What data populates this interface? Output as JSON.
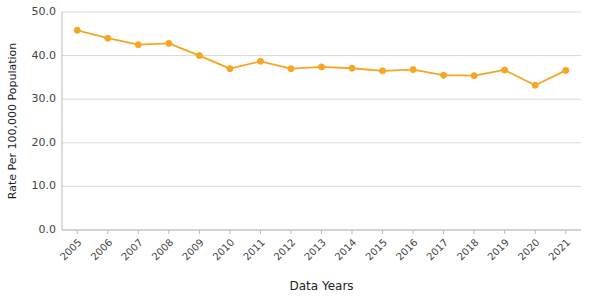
{
  "chart_data": {
    "type": "line",
    "x": [
      2005,
      2006,
      2007,
      2008,
      2009,
      2010,
      2011,
      2012,
      2013,
      2014,
      2015,
      2016,
      2017,
      2018,
      2019,
      2020,
      2021
    ],
    "values": [
      45.8,
      44.0,
      42.5,
      42.8,
      40.0,
      37.0,
      38.7,
      37.0,
      37.4,
      37.1,
      36.5,
      36.8,
      35.5,
      35.4,
      36.7,
      33.2,
      36.6
    ],
    "color": "#F5A623",
    "marker": "circle",
    "xlabel": "Data Years",
    "ylabel": "Rate Per 100,000 Population",
    "xlim": [
      2004.5,
      2021.5
    ],
    "xticks": [
      2005,
      2006,
      2007,
      2008,
      2009,
      2010,
      2011,
      2012,
      2013,
      2014,
      2015,
      2016,
      2017,
      2018,
      2019,
      2020,
      2021
    ],
    "ylim": [
      0.0,
      50.0
    ],
    "yticks": [
      {
        "value": 0.0,
        "label": "0.0"
      },
      {
        "value": 10.0,
        "label": "10.0"
      },
      {
        "value": 20.0,
        "label": "20.0"
      },
      {
        "value": 30.0,
        "label": "30.0"
      },
      {
        "value": 40.0,
        "label": "40.0"
      },
      {
        "value": 50.0,
        "label": "50.0"
      }
    ],
    "grid": true
  }
}
